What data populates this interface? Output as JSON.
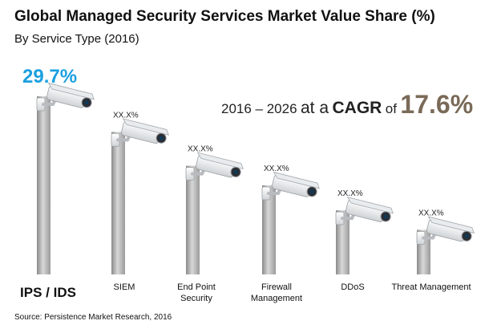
{
  "title": "Global Managed Security Services Market Value Share (%)",
  "subtitle": "By Service Type (2016)",
  "cagr": {
    "period": "2016 – 2026",
    "at_a": "at a",
    "keyword": "CAGR",
    "of": "of",
    "value": "17.6%"
  },
  "source": "Source: Persistence Market Research, 2016",
  "colors": {
    "highlight": "#1ba0e0",
    "cagr_value": "#7a6a58",
    "pole": "#a3a3a3"
  },
  "chart_data": {
    "type": "bar",
    "title": "Global Managed Security Services Market Value Share (%)",
    "subtitle": "By Service Type (2016)",
    "categories": [
      "IPS / IDS",
      "SIEM",
      "End Point Security",
      "Firewall Management",
      "DDoS",
      "Threat Management"
    ],
    "category_lines": [
      [
        "IPS / IDS"
      ],
      [
        "SIEM"
      ],
      [
        "End Point",
        "Security"
      ],
      [
        "Firewall",
        "Management"
      ],
      [
        "DDoS"
      ],
      [
        "Threat Management"
      ]
    ],
    "value_labels": [
      "29.7%",
      "XX.X%",
      "XX.X%",
      "XX.X%",
      "XX.X%",
      "XX.X%"
    ],
    "values": [
      29.7,
      null,
      null,
      null,
      null,
      null
    ],
    "heights_relative": [
      1.0,
      0.8,
      0.61,
      0.5,
      0.36,
      0.25
    ],
    "marker_icon": "security-camera-icon",
    "grid": false,
    "legend": "none"
  }
}
